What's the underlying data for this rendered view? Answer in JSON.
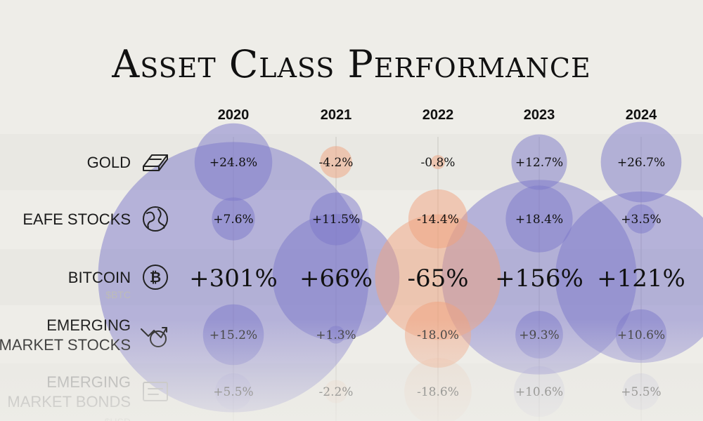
{
  "chart_data": {
    "type": "bubble-table",
    "title": "Asset Class Performance",
    "years": [
      "2020",
      "2021",
      "2022",
      "2023",
      "2024"
    ],
    "rows": [
      {
        "label_lines": [
          "GOLD"
        ],
        "sublabel": "",
        "icon": "gold-bars-icon",
        "labels": [
          "+24.8%",
          "-4.2%",
          "-0.8%",
          "+12.7%",
          "+26.7%"
        ],
        "values": [
          24.8,
          -4.2,
          -0.8,
          12.7,
          26.7
        ]
      },
      {
        "label_lines": [
          "EAFE STOCKS"
        ],
        "sublabel": "",
        "icon": "globe-icon",
        "labels": [
          "+7.6%",
          "+11.5%",
          "-14.4%",
          "+18.4%",
          "+3.5%"
        ],
        "values": [
          7.6,
          11.5,
          -14.4,
          18.4,
          3.5
        ]
      },
      {
        "label_lines": [
          "BITCOIN"
        ],
        "sublabel": "$BTC",
        "icon": "bitcoin-icon",
        "labels": [
          "+301%",
          "+66%",
          "-65%",
          "+156%",
          "+121%"
        ],
        "values": [
          301,
          66,
          -65,
          156,
          121
        ]
      },
      {
        "label_lines": [
          "EMERGING",
          "MARKET STOCKS"
        ],
        "sublabel": "",
        "icon": "growth-chart-icon",
        "labels": [
          "+15.2%",
          "+1.3%",
          "-18.0%",
          "+9.3%",
          "+10.6%"
        ],
        "values": [
          15.2,
          1.3,
          -18.0,
          9.3,
          10.6
        ]
      },
      {
        "label_lines": [
          "EMERGING",
          "MARKET BONDS"
        ],
        "sublabel": "$USD",
        "icon": "bond-certificate-icon",
        "labels": [
          "+5.5%",
          "-2.2%",
          "-18.6%",
          "+10.6%",
          "+5.5%"
        ],
        "values": [
          5.5,
          -2.2,
          -18.6,
          10.6,
          5.5
        ]
      }
    ]
  },
  "colors": {
    "positive": "#7b77c9",
    "negative": "#f0a27e",
    "background": "#eeede8",
    "text": "#111111",
    "label": "#1a1a1a",
    "faded_label": "#9a9a9a"
  }
}
